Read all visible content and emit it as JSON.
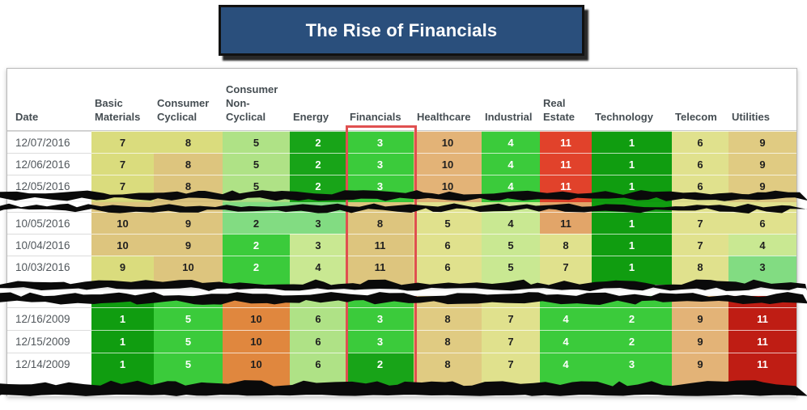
{
  "title": "The Rise of Financials",
  "accent": {
    "highlight_border": "#e05050",
    "title_background": "#2a4f7c",
    "title_text": "#ffffff"
  },
  "chart_data": {
    "type": "heatmap",
    "title": "The Rise of Financials",
    "description": "Daily sector rank table (1 = best / green, 11 = worst / red); Financials column outlined in red across three torn date ranges.",
    "columns": [
      "Date",
      "Basic Materials",
      "Consumer Cyclical",
      "Consumer Non-Cyclical",
      "Energy",
      "Financials",
      "Healthcare",
      "Industrial",
      "Real Estate",
      "Technology",
      "Telecom",
      "Utilities"
    ],
    "highlighted_column": "Financials",
    "rank_scale": {
      "min": 1,
      "max": 11,
      "low_color": "#109d10",
      "high_color": "#bf1d14"
    },
    "palette": {
      "dg": "#109d10",
      "g2": "#18a418",
      "bg": "#3bcb3b",
      "mg": "#82dc82",
      "lg": "#afe286",
      "pg": "#c9e892",
      "ky": "#dadc7d",
      "pk": "#e0e18d",
      "tn": "#ddc57e",
      "tl": "#e0cb82",
      "sd": "#e3b377",
      "ol": "#e2a569",
      "or": "#e0873e",
      "vr": "#e1422b",
      "dr": "#bf1d14"
    },
    "sections": [
      {
        "rows": [
          {
            "date": "12/07/2016",
            "ranks": [
              7,
              8,
              5,
              2,
              3,
              10,
              4,
              11,
              1,
              6,
              9
            ],
            "colors": [
              "ky",
              "ky",
              "lg",
              "g2",
              "bg",
              "sd",
              "bg",
              "vr",
              "dg",
              "pk",
              "tl"
            ]
          },
          {
            "date": "12/06/2016",
            "ranks": [
              7,
              8,
              5,
              2,
              3,
              10,
              4,
              11,
              1,
              6,
              9
            ],
            "colors": [
              "ky",
              "tn",
              "lg",
              "g2",
              "bg",
              "sd",
              "bg",
              "vr",
              "dg",
              "pk",
              "tl"
            ]
          },
          {
            "date": "12/05/2016",
            "ranks": [
              7,
              8,
              5,
              2,
              3,
              10,
              4,
              11,
              1,
              6,
              9
            ],
            "colors": [
              "ky",
              "tn",
              "lg",
              "g2",
              "bg",
              "sd",
              "bg",
              "vr",
              "dg",
              "pk",
              "tl"
            ]
          }
        ]
      },
      {
        "rows": [
          {
            "date": "10/05/2016",
            "ranks": [
              10,
              9,
              2,
              3,
              8,
              5,
              4,
              11,
              1,
              7,
              6
            ],
            "colors": [
              "tn",
              "tn",
              "mg",
              "mg",
              "tn",
              "pk",
              "pg",
              "ol",
              "dg",
              "pk",
              "pk"
            ]
          },
          {
            "date": "10/04/2016",
            "ranks": [
              10,
              9,
              2,
              3,
              11,
              6,
              5,
              8,
              1,
              7,
              4
            ],
            "colors": [
              "tn",
              "tn",
              "bg",
              "pg",
              "tn",
              "pk",
              "pg",
              "pk",
              "dg",
              "pk",
              "pg"
            ]
          },
          {
            "date": "10/03/2016",
            "ranks": [
              9,
              10,
              2,
              4,
              11,
              6,
              5,
              7,
              1,
              8,
              3
            ],
            "colors": [
              "ky",
              "tn",
              "bg",
              "pg",
              "tn",
              "pk",
              "pg",
              "pk",
              "dg",
              "pk",
              "mg"
            ]
          }
        ]
      },
      {
        "rows": [
          {
            "date": "12/16/2009",
            "ranks": [
              1,
              5,
              10,
              6,
              3,
              8,
              7,
              4,
              2,
              9,
              11
            ],
            "colors": [
              "dg",
              "bg",
              "or",
              "lg",
              "bg",
              "tl",
              "pk",
              "bg",
              "bg",
              "sd",
              "dr"
            ]
          },
          {
            "date": "12/15/2009",
            "ranks": [
              1,
              5,
              10,
              6,
              3,
              8,
              7,
              4,
              2,
              9,
              11
            ],
            "colors": [
              "dg",
              "bg",
              "or",
              "lg",
              "bg",
              "tl",
              "pk",
              "bg",
              "bg",
              "sd",
              "dr"
            ]
          },
          {
            "date": "12/14/2009",
            "ranks": [
              1,
              5,
              10,
              6,
              2,
              8,
              7,
              4,
              3,
              9,
              11
            ],
            "colors": [
              "dg",
              "bg",
              "or",
              "lg",
              "g2",
              "tl",
              "pk",
              "bg",
              "bg",
              "sd",
              "dr"
            ]
          }
        ]
      }
    ]
  }
}
